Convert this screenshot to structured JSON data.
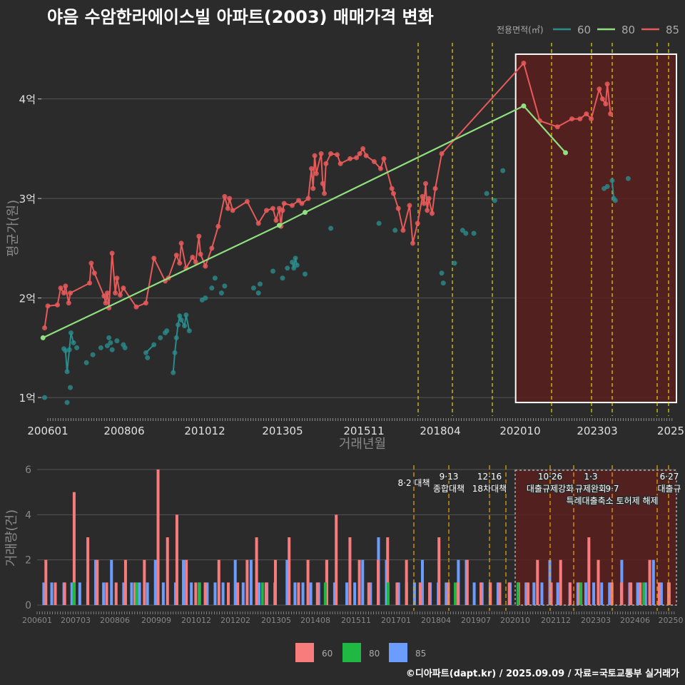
{
  "title": "야음 수암한라에이스빌 아파트(2003) 매매가격 변화",
  "credit": "©디아파트(dapt.kr) / 2025.09.09 / 자료=국토교통부 실거래가",
  "colors": {
    "bg": "#2b2b2b",
    "grid": "#555555",
    "s60": "#2a8c8c",
    "s80": "#90e080",
    "s85": "#e85a5a",
    "bar60": "#f87c7c",
    "bar80": "#1fb843",
    "bar85": "#6b9dff",
    "vline": "#e8d800",
    "vline2": "#f0a800",
    "highlight": "#5a1f1f"
  },
  "chart_data": [
    {
      "type": "line",
      "ylabel": "평균가(원)",
      "xlabel": "거래년월",
      "legend_title": "전용면적(㎡)",
      "legend_position": "top-right",
      "x_ticks": [
        "200601",
        "200806",
        "201012",
        "201305",
        "201511",
        "201804",
        "202010",
        "202303",
        "2025"
      ],
      "y_ticks": [
        "1억",
        "2억",
        "3억",
        "4억"
      ],
      "ylim": [
        0.8,
        4.6
      ],
      "xlim": [
        2006.0,
        2025.75
      ],
      "grid": true,
      "policy_lines": [
        2017.58,
        2018.7,
        2019.96,
        2021.82,
        2023.05,
        2023.7,
        2025.1,
        2025.45
      ],
      "highlight": {
        "x_start": 2020.75,
        "x_end": 2025.75,
        "y_start": 0.95,
        "y_end": 4.45
      },
      "series": [
        {
          "name": "60",
          "color_key": "s60",
          "points": [
            [
              2006.1,
              1.0
            ],
            [
              2006.8,
              0.95
            ],
            [
              2006.9,
              1.1
            ],
            [
              2006.7,
              1.49
            ],
            [
              2006.75,
              1.47
            ],
            [
              2006.8,
              1.26
            ],
            [
              2006.87,
              1.48
            ],
            [
              2006.92,
              1.65
            ],
            [
              2007.0,
              1.55
            ],
            [
              2007.1,
              1.5
            ],
            [
              2007.4,
              1.35
            ],
            [
              2007.6,
              1.43
            ],
            [
              2007.85,
              1.5
            ],
            [
              2008.05,
              1.52
            ],
            [
              2008.1,
              1.6
            ],
            [
              2008.15,
              1.55
            ],
            [
              2008.2,
              1.48
            ],
            [
              2008.35,
              1.57
            ],
            [
              2008.55,
              1.53
            ],
            [
              2008.6,
              1.5
            ],
            [
              2009.25,
              1.45
            ],
            [
              2009.3,
              1.4
            ],
            [
              2009.5,
              1.53
            ],
            [
              2009.7,
              1.6
            ],
            [
              2009.85,
              1.65
            ],
            [
              2009.9,
              1.67
            ],
            [
              2010.1,
              1.25
            ],
            [
              2010.15,
              1.45
            ],
            [
              2010.2,
              1.6
            ],
            [
              2010.25,
              1.73
            ],
            [
              2010.3,
              1.82
            ],
            [
              2010.35,
              1.78
            ],
            [
              2010.45,
              1.72
            ],
            [
              2010.5,
              1.83
            ],
            [
              2010.6,
              1.67
            ],
            [
              2011.0,
              1.98
            ],
            [
              2011.1,
              2.0
            ],
            [
              2011.3,
              2.1
            ],
            [
              2011.4,
              2.2
            ],
            [
              2011.6,
              2.05
            ],
            [
              2011.7,
              2.12
            ],
            [
              2012.6,
              2.1
            ],
            [
              2012.75,
              2.05
            ],
            [
              2012.8,
              2.14
            ],
            [
              2013.2,
              2.27
            ],
            [
              2013.5,
              2.2
            ],
            [
              2013.65,
              2.3
            ],
            [
              2013.8,
              2.36
            ],
            [
              2013.85,
              2.3
            ],
            [
              2013.9,
              2.4
            ],
            [
              2013.95,
              2.33
            ],
            [
              2014.2,
              2.24
            ],
            [
              2015.0,
              2.7
            ],
            [
              2016.5,
              2.75
            ],
            [
              2017.0,
              2.68
            ],
            [
              2018.45,
              2.25
            ],
            [
              2018.5,
              2.15
            ],
            [
              2018.85,
              2.35
            ],
            [
              2019.1,
              2.68
            ],
            [
              2019.2,
              2.65
            ],
            [
              2019.45,
              2.65
            ],
            [
              2019.85,
              3.05
            ],
            [
              2020.1,
              2.98
            ],
            [
              2020.35,
              3.28
            ],
            [
              2023.5,
              3.1
            ],
            [
              2023.6,
              3.12
            ],
            [
              2023.75,
              3.18
            ],
            [
              2023.8,
              3.0
            ],
            [
              2023.85,
              2.98
            ],
            [
              2024.25,
              3.2
            ]
          ],
          "line_segments": [
            [
              [
                2006.7,
                1.49
              ],
              [
                2006.75,
                1.47
              ],
              [
                2006.8,
                1.26
              ],
              [
                2006.87,
                1.48
              ],
              [
                2006.92,
                1.65
              ],
              [
                2007.0,
                1.55
              ]
            ],
            [
              [
                2009.25,
                1.45
              ],
              [
                2009.5,
                1.53
              ]
            ],
            [
              [
                2010.1,
                1.25
              ],
              [
                2010.15,
                1.45
              ],
              [
                2010.2,
                1.6
              ],
              [
                2010.25,
                1.73
              ],
              [
                2010.3,
                1.82
              ],
              [
                2010.35,
                1.78
              ],
              [
                2010.45,
                1.72
              ],
              [
                2010.5,
                1.83
              ],
              [
                2010.6,
                1.67
              ]
            ],
            [
              [
                2013.8,
                2.36
              ],
              [
                2013.85,
                2.3
              ],
              [
                2013.9,
                2.4
              ],
              [
                2013.95,
                2.33
              ]
            ],
            [
              [
                2023.75,
                3.18
              ],
              [
                2023.8,
                3.0
              ],
              [
                2023.85,
                2.98
              ]
            ]
          ]
        },
        {
          "name": "80",
          "color_key": "s80",
          "points": [
            [
              2006.05,
              1.6
            ],
            [
              2013.4,
              2.73
            ],
            [
              2014.2,
              2.86
            ],
            [
              2021.0,
              3.93
            ],
            [
              2022.3,
              3.46
            ]
          ]
        },
        {
          "name": "85",
          "color_key": "s85",
          "points": [
            [
              2006.1,
              1.7
            ],
            [
              2006.2,
              1.92
            ],
            [
              2006.5,
              1.93
            ],
            [
              2006.6,
              2.1
            ],
            [
              2006.7,
              2.05
            ],
            [
              2006.75,
              2.12
            ],
            [
              2006.85,
              1.95
            ],
            [
              2006.9,
              2.05
            ],
            [
              2007.5,
              2.15
            ],
            [
              2007.55,
              2.35
            ],
            [
              2007.65,
              2.25
            ],
            [
              2007.95,
              2.02
            ],
            [
              2008.0,
              1.95
            ],
            [
              2008.05,
              2.05
            ],
            [
              2008.1,
              1.9
            ],
            [
              2008.2,
              2.45
            ],
            [
              2008.3,
              2.05
            ],
            [
              2008.35,
              2.2
            ],
            [
              2008.45,
              2.03
            ],
            [
              2008.55,
              2.1
            ],
            [
              2008.95,
              1.91
            ],
            [
              2009.25,
              1.95
            ],
            [
              2009.5,
              2.4
            ],
            [
              2009.85,
              2.17
            ],
            [
              2009.95,
              2.2
            ],
            [
              2010.2,
              2.43
            ],
            [
              2010.3,
              2.35
            ],
            [
              2010.35,
              2.55
            ],
            [
              2010.5,
              2.3
            ],
            [
              2010.7,
              2.41
            ],
            [
              2010.8,
              2.36
            ],
            [
              2010.9,
              2.62
            ],
            [
              2010.95,
              2.44
            ],
            [
              2011.1,
              2.32
            ],
            [
              2011.3,
              2.5
            ],
            [
              2011.5,
              2.72
            ],
            [
              2011.7,
              3.02
            ],
            [
              2011.8,
              2.9
            ],
            [
              2011.85,
              3.0
            ],
            [
              2011.95,
              2.88
            ],
            [
              2012.4,
              2.97
            ],
            [
              2012.75,
              2.75
            ],
            [
              2013.0,
              2.88
            ],
            [
              2013.2,
              2.9
            ],
            [
              2013.3,
              2.78
            ],
            [
              2013.4,
              2.9
            ],
            [
              2013.45,
              2.72
            ],
            [
              2013.5,
              2.88
            ],
            [
              2013.55,
              2.95
            ],
            [
              2013.8,
              2.93
            ],
            [
              2014.0,
              2.98
            ],
            [
              2014.1,
              2.95
            ],
            [
              2014.3,
              3.0
            ],
            [
              2014.4,
              3.3
            ],
            [
              2014.45,
              3.1
            ],
            [
              2014.5,
              3.43
            ],
            [
              2014.55,
              3.25
            ],
            [
              2014.7,
              3.45
            ],
            [
              2014.75,
              3.15
            ],
            [
              2014.8,
              3.05
            ],
            [
              2014.85,
              3.35
            ],
            [
              2015.0,
              3.45
            ],
            [
              2015.2,
              3.44
            ],
            [
              2015.3,
              3.35
            ],
            [
              2015.6,
              3.4
            ],
            [
              2015.8,
              3.41
            ],
            [
              2015.9,
              3.45
            ],
            [
              2016.0,
              3.5
            ],
            [
              2016.1,
              3.43
            ],
            [
              2016.35,
              3.37
            ],
            [
              2016.55,
              3.3
            ],
            [
              2016.65,
              3.4
            ],
            [
              2016.9,
              3.1
            ],
            [
              2016.95,
              3.05
            ],
            [
              2017.1,
              2.9
            ],
            [
              2017.25,
              2.68
            ],
            [
              2017.45,
              2.93
            ],
            [
              2017.55,
              2.55
            ],
            [
              2017.7,
              2.75
            ],
            [
              2017.85,
              3.02
            ],
            [
              2017.9,
              2.95
            ],
            [
              2017.95,
              3.15
            ],
            [
              2018.0,
              2.88
            ],
            [
              2018.05,
              3.0
            ],
            [
              2018.15,
              2.85
            ],
            [
              2018.25,
              3.1
            ],
            [
              2018.45,
              3.45
            ],
            [
              2021.0,
              4.36
            ],
            [
              2021.5,
              3.78
            ],
            [
              2022.05,
              3.72
            ],
            [
              2022.5,
              3.8
            ],
            [
              2022.75,
              3.8
            ],
            [
              2022.95,
              3.85
            ],
            [
              2023.1,
              3.8
            ],
            [
              2023.35,
              4.1
            ],
            [
              2023.45,
              4.0
            ],
            [
              2023.55,
              3.95
            ],
            [
              2023.6,
              4.15
            ],
            [
              2023.7,
              3.85
            ]
          ]
        }
      ]
    },
    {
      "type": "bar",
      "ylabel": "거래량(건)",
      "y_ticks": [
        "0",
        "2",
        "4",
        "6"
      ],
      "ylim": [
        0,
        6
      ],
      "x_ticks": [
        "200601",
        "200703",
        "200806",
        "200909",
        "201012",
        "201202",
        "201305",
        "201408",
        "201511",
        "201701",
        "201804",
        "201907",
        "202010",
        "202112",
        "202303",
        "202406",
        "20250"
      ],
      "legend_position": "bottom",
      "legend": [
        "60",
        "80",
        "85"
      ],
      "annotations": [
        {
          "x": 2017.58,
          "lines": [
            "8·2 대책"
          ]
        },
        {
          "x": 2018.7,
          "lines": [
            "9·13",
            "종합대책"
          ]
        },
        {
          "x": 2019.96,
          "lines": [
            "12·16",
            "18차대책"
          ]
        },
        {
          "x": 2021.82,
          "lines": [
            "10·26",
            "대출규제강화"
          ]
        },
        {
          "x": 2023.05,
          "lines": [
            "1·3",
            "규제완화"
          ]
        },
        {
          "x": 2023.7,
          "lines": [
            "",
            "9·7",
            "특례대출축소 토허제 해제"
          ]
        },
        {
          "x": 2025.45,
          "lines": [
            "6·27",
            "대출규"
          ]
        }
      ],
      "bars": {
        "85": [
          1,
          1,
          1,
          1,
          1,
          1,
          2,
          1,
          2,
          1,
          1,
          1,
          1,
          2,
          1,
          1,
          2,
          1,
          1,
          1,
          1,
          1,
          2,
          1,
          2,
          1,
          1,
          1,
          2,
          1,
          1,
          1,
          1,
          2,
          1,
          1,
          1,
          2,
          1,
          3,
          2,
          1,
          1,
          1,
          2,
          1,
          1,
          1,
          2,
          2,
          1,
          1,
          1,
          1,
          1,
          1,
          1,
          1,
          1,
          2,
          1,
          1,
          1,
          1,
          1,
          1,
          1,
          2,
          1,
          1,
          1,
          2,
          1,
          1
        ],
        "60": [
          2,
          1,
          1,
          5,
          3,
          2,
          1,
          1,
          2,
          1,
          2,
          6,
          3,
          4,
          2,
          1,
          1,
          2,
          1,
          1,
          2,
          3,
          1,
          2,
          3,
          1,
          2,
          1,
          2,
          4,
          3,
          2,
          1,
          2,
          3,
          1,
          2,
          1,
          1,
          3,
          1,
          1,
          2,
          1,
          1,
          1,
          1,
          1,
          1,
          2,
          1,
          2,
          1,
          1,
          3,
          2,
          1,
          1,
          1,
          1,
          2,
          1,
          1
        ],
        "80": [
          1,
          1,
          1,
          1,
          1,
          1,
          1,
          1,
          1,
          1
        ]
      }
    }
  ]
}
